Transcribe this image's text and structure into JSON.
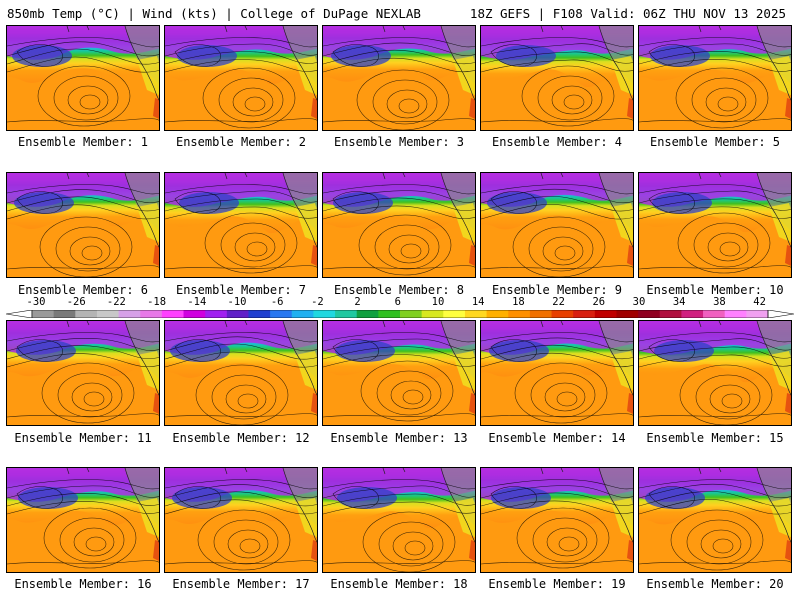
{
  "header": {
    "title_left": "850mb Temp (°C) | Wind (kts) | College of DuPage NEXLAB",
    "title_right": "18Z GEFS | F108 Valid: 06Z THU NOV 13 2025"
  },
  "members": [
    {
      "label": "Ensemble Member: 1"
    },
    {
      "label": "Ensemble Member: 2"
    },
    {
      "label": "Ensemble Member: 3"
    },
    {
      "label": "Ensemble Member: 4"
    },
    {
      "label": "Ensemble Member: 5"
    },
    {
      "label": "Ensemble Member: 6"
    },
    {
      "label": "Ensemble Member: 7"
    },
    {
      "label": "Ensemble Member: 8"
    },
    {
      "label": "Ensemble Member: 9"
    },
    {
      "label": "Ensemble Member: 10"
    },
    {
      "label": "Ensemble Member: 11"
    },
    {
      "label": "Ensemble Member: 12"
    },
    {
      "label": "Ensemble Member: 13"
    },
    {
      "label": "Ensemble Member: 14"
    },
    {
      "label": "Ensemble Member: 15"
    },
    {
      "label": "Ensemble Member: 16"
    },
    {
      "label": "Ensemble Member: 17"
    },
    {
      "label": "Ensemble Member: 18"
    },
    {
      "label": "Ensemble Member: 19"
    },
    {
      "label": "Ensemble Member: 20"
    }
  ],
  "colorbar": {
    "ticks": [
      "-30",
      "-26",
      "-22",
      "-18",
      "-14",
      "-10",
      "-6",
      "-2",
      "2",
      "6",
      "10",
      "14",
      "18",
      "22",
      "26",
      "30",
      "34",
      "38",
      "42"
    ],
    "colors": [
      "#9a9a9a",
      "#7a7a7a",
      "#b4b4b4",
      "#c8c8c8",
      "#d6a0e8",
      "#e878e8",
      "#ff40ff",
      "#d000e0",
      "#a020f0",
      "#6020c8",
      "#2040d0",
      "#2878f0",
      "#20b0f0",
      "#20d8e0",
      "#20c8a0",
      "#10a040",
      "#30c020",
      "#80d020",
      "#d8e820",
      "#ffff40",
      "#ffd820",
      "#ffb000",
      "#ff9000",
      "#f07000",
      "#e84000",
      "#d82010",
      "#c00000",
      "#a00000",
      "#900020",
      "#b01040",
      "#d02080",
      "#f060c0",
      "#ff80ff",
      "#f0a0f0"
    ]
  }
}
